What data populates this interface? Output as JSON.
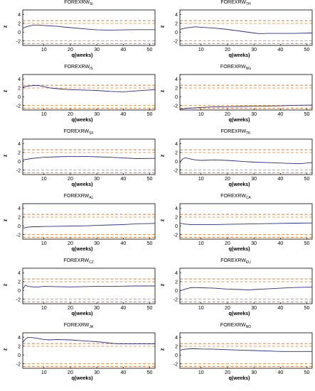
{
  "chart_data": [
    {
      "type": "line",
      "title_main": "FOREXRW",
      "title_sub": "SI",
      "xlabel": "q(weeks)",
      "ylabel": "z",
      "xlim": [
        2,
        52
      ],
      "ylim": [
        -3,
        5
      ],
      "xticks": [
        10,
        20,
        30,
        40,
        50
      ],
      "yticks": [
        -2,
        0,
        2,
        4
      ],
      "bands": [
        1.96,
        2.58,
        -1.96,
        -2.58
      ],
      "series": [
        {
          "x": [
            2,
            4,
            6,
            8,
            10,
            15,
            20,
            25,
            30,
            35,
            40,
            45,
            52
          ],
          "y": [
            0.9,
            1.3,
            1.6,
            1.6,
            1.5,
            1.3,
            1.0,
            0.75,
            0.5,
            0.45,
            0.5,
            0.55,
            0.55
          ]
        }
      ]
    },
    {
      "type": "line",
      "title_main": "FOREXRW",
      "title_sub": "TH",
      "xlabel": "q(weeks)",
      "ylabel": "z",
      "xlim": [
        2,
        52
      ],
      "ylim": [
        -3,
        5
      ],
      "xticks": [
        10,
        20,
        30,
        40,
        50
      ],
      "yticks": [
        -2,
        0,
        2,
        4
      ],
      "bands": [
        1.96,
        2.58,
        -1.96,
        -2.58
      ],
      "series": [
        {
          "x": [
            2,
            4,
            6,
            8,
            10,
            15,
            20,
            25,
            30,
            32,
            35,
            40,
            45,
            52
          ],
          "y": [
            0.6,
            0.9,
            1.1,
            1.2,
            1.1,
            0.9,
            0.6,
            0.2,
            -0.2,
            -0.35,
            -0.3,
            -0.3,
            -0.3,
            -0.2
          ]
        }
      ]
    },
    {
      "type": "line",
      "title_main": "FOREXRW",
      "title_sub": "IS",
      "xlabel": "q(weeks)",
      "ylabel": "z",
      "xlim": [
        2,
        52
      ],
      "ylim": [
        -3,
        5
      ],
      "xticks": [
        10,
        20,
        30,
        40,
        50
      ],
      "yticks": [
        -2,
        0,
        2,
        4
      ],
      "bands": [
        1.96,
        2.58,
        -1.96,
        -2.58
      ],
      "series": [
        {
          "x": [
            2,
            4,
            6,
            8,
            10,
            12,
            15,
            20,
            25,
            30,
            35,
            40,
            45,
            52
          ],
          "y": [
            2.1,
            2.4,
            2.5,
            2.5,
            2.3,
            2.0,
            1.8,
            1.6,
            1.5,
            1.4,
            1.2,
            1.1,
            1.3,
            1.6
          ]
        }
      ]
    },
    {
      "type": "line",
      "title_main": "FOREXRW",
      "title_sub": "NG",
      "xlabel": "q(weeks)",
      "ylabel": "z",
      "xlim": [
        2,
        52
      ],
      "ylim": [
        -3,
        5
      ],
      "xticks": [
        10,
        20,
        30,
        40,
        50
      ],
      "yticks": [
        -2,
        0,
        2,
        4
      ],
      "bands": [
        1.96,
        2.58,
        -1.96,
        -2.58
      ],
      "series": [
        {
          "x": [
            2,
            5,
            8,
            10,
            15,
            20,
            25,
            30,
            35,
            40,
            45,
            52
          ],
          "y": [
            -2.8,
            -2.6,
            -2.5,
            -2.4,
            -2.3,
            -2.25,
            -2.2,
            -2.15,
            -2.1,
            -2.05,
            -1.95,
            -1.9
          ]
        }
      ]
    },
    {
      "type": "line",
      "title_main": "FOREXRW",
      "title_sub": "SF",
      "xlabel": "q(weeks)",
      "ylabel": "z",
      "xlim": [
        2,
        52
      ],
      "ylim": [
        -3,
        5
      ],
      "xticks": [
        10,
        20,
        30,
        40,
        50
      ],
      "yticks": [
        -2,
        0,
        2,
        4
      ],
      "bands": [
        1.96,
        2.58,
        -1.96,
        -2.58
      ],
      "series": [
        {
          "x": [
            2,
            5,
            8,
            10,
            15,
            20,
            25,
            30,
            35,
            40,
            45,
            52
          ],
          "y": [
            0.3,
            0.6,
            0.8,
            0.9,
            1.0,
            1.1,
            1.1,
            1.0,
            0.9,
            0.75,
            0.6,
            0.65
          ]
        }
      ]
    },
    {
      "type": "line",
      "title_main": "FOREXRW",
      "title_sub": "TK",
      "xlabel": "q(weeks)",
      "ylabel": "z",
      "xlim": [
        2,
        52
      ],
      "ylim": [
        -3,
        5
      ],
      "xticks": [
        10,
        20,
        30,
        40,
        50
      ],
      "yticks": [
        -2,
        0,
        2,
        4
      ],
      "bands": [
        1.96,
        2.58,
        -1.96,
        -2.58
      ],
      "series": [
        {
          "x": [
            2,
            3,
            4,
            6,
            8,
            10,
            15,
            20,
            25,
            30,
            35,
            40,
            45,
            48,
            52
          ],
          "y": [
            -0.3,
            0.5,
            0.8,
            0.5,
            0.3,
            0.2,
            0.3,
            0.2,
            0.0,
            -0.2,
            -0.3,
            -0.4,
            -0.5,
            -0.5,
            -0.3
          ]
        }
      ]
    },
    {
      "type": "line",
      "title_main": "FOREXRW",
      "title_sub": "AL",
      "xlabel": "q(weeks)",
      "ylabel": "z",
      "xlim": [
        2,
        52
      ],
      "ylim": [
        -3,
        5
      ],
      "xticks": [
        10,
        20,
        30,
        40,
        50
      ],
      "yticks": [
        -2,
        0,
        2,
        4
      ],
      "bands": [
        1.96,
        2.58,
        -1.96,
        -2.58
      ],
      "series": [
        {
          "x": [
            2,
            4,
            6,
            8,
            10,
            15,
            20,
            25,
            30,
            35,
            40,
            45,
            52
          ],
          "y": [
            -0.5,
            -0.3,
            -0.2,
            -0.2,
            -0.15,
            -0.1,
            -0.05,
            0.0,
            0.1,
            0.2,
            0.3,
            0.45,
            0.55
          ]
        }
      ]
    },
    {
      "type": "line",
      "title_main": "FOREXRW",
      "title_sub": "CA",
      "xlabel": "q(weeks)",
      "ylabel": "z",
      "xlim": [
        2,
        52
      ],
      "ylim": [
        -3,
        5
      ],
      "xticks": [
        10,
        20,
        30,
        40,
        50
      ],
      "yticks": [
        -2,
        0,
        2,
        4
      ],
      "bands": [
        1.96,
        2.58,
        -1.96,
        -2.58
      ],
      "series": [
        {
          "x": [
            2,
            4,
            6,
            8,
            10,
            15,
            20,
            25,
            30,
            35,
            40,
            45,
            52
          ],
          "y": [
            0.6,
            0.4,
            0.3,
            0.3,
            0.3,
            0.3,
            0.35,
            0.4,
            0.45,
            0.5,
            0.55,
            0.6,
            0.65
          ]
        }
      ]
    },
    {
      "type": "line",
      "title_main": "FOREXRW",
      "title_sub": "CZ",
      "xlabel": "q(weeks)",
      "ylabel": "z",
      "xlim": [
        2,
        52
      ],
      "ylim": [
        -3,
        5
      ],
      "xticks": [
        10,
        20,
        30,
        40,
        50
      ],
      "yticks": [
        -2,
        0,
        2,
        4
      ],
      "bands": [
        1.96,
        2.58,
        -1.96,
        -2.58
      ],
      "series": [
        {
          "x": [
            2,
            3,
            4,
            6,
            8,
            10,
            15,
            20,
            25,
            30,
            35,
            40,
            45,
            52
          ],
          "y": [
            0.3,
            1.2,
            0.9,
            0.8,
            0.8,
            0.9,
            0.85,
            0.8,
            0.85,
            0.9,
            0.9,
            0.95,
            1.0,
            1.0
          ]
        }
      ]
    },
    {
      "type": "line",
      "title_main": "FOREXRW",
      "title_sub": "EU",
      "xlabel": "q(weeks)",
      "ylabel": "z",
      "xlim": [
        2,
        52
      ],
      "ylim": [
        -3,
        5
      ],
      "xticks": [
        10,
        20,
        30,
        40,
        50
      ],
      "yticks": [
        -2,
        0,
        2,
        4
      ],
      "bands": [
        1.96,
        2.58,
        -1.96,
        -2.58
      ],
      "series": [
        {
          "x": [
            2,
            4,
            6,
            8,
            10,
            15,
            20,
            25,
            28,
            30,
            35,
            40,
            45,
            52
          ],
          "y": [
            -0.1,
            0.3,
            0.6,
            0.65,
            0.6,
            0.5,
            0.3,
            0.2,
            0.1,
            0.2,
            0.35,
            0.5,
            0.65,
            0.75
          ]
        }
      ]
    },
    {
      "type": "line",
      "title_main": "FOREXRW",
      "title_sub": "JA",
      "xlabel": "q(weeks)",
      "ylabel": "z",
      "xlim": [
        2,
        52
      ],
      "ylim": [
        -3,
        5
      ],
      "xticks": [
        10,
        20,
        30,
        40,
        50
      ],
      "yticks": [
        -2,
        0,
        2,
        4
      ],
      "bands": [
        1.96,
        2.58,
        -1.96,
        -2.58
      ],
      "series": [
        {
          "x": [
            2,
            3,
            4,
            6,
            8,
            10,
            12,
            15,
            20,
            25,
            30,
            35,
            38,
            40,
            45,
            52
          ],
          "y": [
            2.8,
            3.6,
            4.0,
            3.9,
            3.7,
            3.5,
            3.4,
            3.5,
            3.4,
            3.2,
            3.0,
            2.7,
            2.5,
            2.5,
            2.5,
            2.5
          ]
        }
      ]
    },
    {
      "type": "line",
      "title_main": "FOREXRW",
      "title_sub": "NO",
      "xlabel": "q(weeks)",
      "ylabel": "z",
      "xlim": [
        2,
        52
      ],
      "ylim": [
        -3,
        5
      ],
      "xticks": [
        10,
        20,
        30,
        40,
        50
      ],
      "yticks": [
        -2,
        0,
        2,
        4
      ],
      "bands": [
        1.96,
        2.58,
        -1.96,
        -2.58
      ],
      "series": [
        {
          "x": [
            2,
            4,
            6,
            8,
            10,
            15,
            20,
            25,
            30,
            35,
            40,
            45,
            52
          ],
          "y": [
            1.1,
            1.3,
            1.4,
            1.4,
            1.35,
            1.3,
            1.2,
            1.1,
            1.0,
            0.9,
            0.8,
            0.8,
            0.8
          ]
        }
      ]
    }
  ],
  "colors": {
    "line": "#2a2a8c",
    "band_outer": "#e07a3a",
    "band_inner": "#e2a25c",
    "axis": "#000000"
  }
}
